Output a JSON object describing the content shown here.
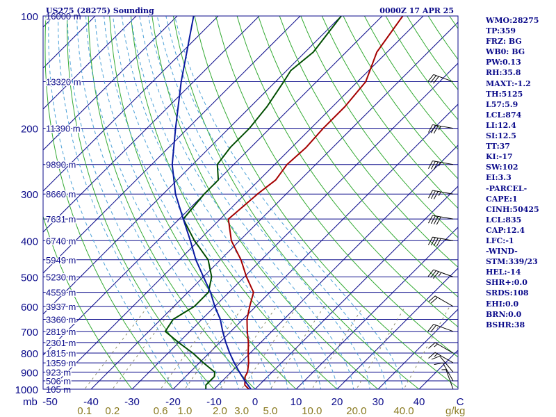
{
  "chart_data": {
    "type": "skew-t",
    "title": "US275 (28275) Sounding",
    "valid_time": "0000Z 17 APR 25",
    "y_unit_label": "mb",
    "pressure_levels": [
      {
        "p": 100,
        "label": "100",
        "height": "16000 m"
      },
      {
        "p": 150,
        "label": "",
        "height": "13320 m"
      },
      {
        "p": 200,
        "label": "200",
        "height": "11390 m"
      },
      {
        "p": 250,
        "label": "",
        "height": "9890 m"
      },
      {
        "p": 300,
        "label": "300",
        "height": "8660 m"
      },
      {
        "p": 350,
        "label": "",
        "height": "7631 m"
      },
      {
        "p": 400,
        "label": "400",
        "height": "6740 m"
      },
      {
        "p": 450,
        "label": "",
        "height": "5949 m"
      },
      {
        "p": 500,
        "label": "500",
        "height": "5230 m"
      },
      {
        "p": 550,
        "label": "",
        "height": "4559 m"
      },
      {
        "p": 600,
        "label": "600",
        "height": "3937 m"
      },
      {
        "p": 650,
        "label": "",
        "height": "3360 m"
      },
      {
        "p": 700,
        "label": "700",
        "height": "2819 m"
      },
      {
        "p": 750,
        "label": "",
        "height": "2301 m"
      },
      {
        "p": 800,
        "label": "800",
        "height": "1815 m"
      },
      {
        "p": 850,
        "label": "",
        "height": "1359 m"
      },
      {
        "p": 900,
        "label": "900",
        "height": "923 m"
      },
      {
        "p": 950,
        "label": "",
        "height": "506 m"
      },
      {
        "p": 1000,
        "label": "1000",
        "height": "105 m"
      }
    ],
    "x_ticks": [
      {
        "t": -50,
        "label": "-50"
      },
      {
        "t": -40,
        "label": "-40"
      },
      {
        "t": -30,
        "label": "-30"
      },
      {
        "t": -20,
        "label": "-20"
      },
      {
        "t": -10,
        "label": "-10"
      },
      {
        "t": 0,
        "label": "0"
      },
      {
        "t": 10,
        "label": "10"
      },
      {
        "t": 20,
        "label": "20"
      },
      {
        "t": 30,
        "label": "30"
      },
      {
        "t": 40,
        "label": "40"
      },
      {
        "t": 50,
        "label": "C"
      }
    ],
    "mixing_ratio": {
      "unit": "g/kg",
      "values": [
        0.1,
        0.2,
        0.6,
        1.0,
        2.0,
        3.0,
        5.0,
        10.0,
        20.0,
        40.0
      ],
      "labels": [
        "0.1",
        "0.2",
        "0.6",
        "1.0",
        "2.0",
        "3.0",
        "5.0",
        "10.0",
        "20.0",
        "40.0"
      ]
    },
    "series": [
      {
        "role": "temperature",
        "color": "#a50000",
        "points": [
          [
            1000,
            -1.5
          ],
          [
            975,
            -3.5
          ],
          [
            950,
            -4.5
          ],
          [
            925,
            -5.5
          ],
          [
            900,
            -6
          ],
          [
            850,
            -8
          ],
          [
            800,
            -10.5
          ],
          [
            750,
            -13
          ],
          [
            700,
            -16
          ],
          [
            650,
            -19
          ],
          [
            600,
            -21.5
          ],
          [
            550,
            -24
          ],
          [
            500,
            -29.5
          ],
          [
            450,
            -35
          ],
          [
            400,
            -42
          ],
          [
            350,
            -48
          ],
          [
            300,
            -47
          ],
          [
            275,
            -46
          ],
          [
            250,
            -47
          ],
          [
            225,
            -46.5
          ],
          [
            200,
            -47
          ],
          [
            175,
            -47
          ],
          [
            150,
            -48
          ],
          [
            125,
            -52.5
          ],
          [
            100,
            -55
          ]
        ]
      },
      {
        "role": "dewpoint",
        "color": "#004d00",
        "points": [
          [
            1000,
            -12
          ],
          [
            975,
            -13
          ],
          [
            950,
            -13
          ],
          [
            925,
            -13
          ],
          [
            900,
            -14
          ],
          [
            850,
            -19
          ],
          [
            800,
            -24
          ],
          [
            750,
            -30
          ],
          [
            700,
            -36
          ],
          [
            650,
            -37
          ],
          [
            600,
            -35
          ],
          [
            550,
            -35
          ],
          [
            500,
            -38
          ],
          [
            450,
            -43
          ],
          [
            400,
            -51
          ],
          [
            350,
            -59
          ],
          [
            300,
            -60
          ],
          [
            275,
            -60
          ],
          [
            250,
            -64
          ],
          [
            225,
            -65
          ],
          [
            200,
            -65
          ],
          [
            175,
            -66
          ],
          [
            150,
            -68
          ],
          [
            140,
            -69
          ],
          [
            125,
            -68
          ],
          [
            100,
            -70
          ]
        ]
      },
      {
        "role": "parcel",
        "color": "#0a1aa0",
        "points": [
          [
            1000,
            -1
          ],
          [
            950,
            -4.5
          ],
          [
            900,
            -8
          ],
          [
            850,
            -11.5
          ],
          [
            800,
            -15
          ],
          [
            750,
            -18.5
          ],
          [
            700,
            -22
          ],
          [
            650,
            -25.5
          ],
          [
            600,
            -30
          ],
          [
            550,
            -34.5
          ],
          [
            500,
            -40
          ],
          [
            450,
            -46
          ],
          [
            400,
            -52
          ],
          [
            350,
            -59
          ],
          [
            300,
            -67
          ],
          [
            250,
            -75
          ],
          [
            200,
            -83
          ],
          [
            150,
            -93
          ],
          [
            100,
            -106
          ]
        ]
      }
    ],
    "wind_barbs": [
      {
        "p": 1000,
        "dir": 340,
        "kt": 5
      },
      {
        "p": 950,
        "dir": 330,
        "kt": 10
      },
      {
        "p": 900,
        "dir": 320,
        "kt": 10
      },
      {
        "p": 850,
        "dir": 300,
        "kt": 15
      },
      {
        "p": 800,
        "dir": 300,
        "kt": 15
      },
      {
        "p": 700,
        "dir": 290,
        "kt": 20
      },
      {
        "p": 600,
        "dir": 300,
        "kt": 20
      },
      {
        "p": 500,
        "dir": 290,
        "kt": 35
      },
      {
        "p": 400,
        "dir": 280,
        "kt": 40
      },
      {
        "p": 350,
        "dir": 280,
        "kt": 40
      },
      {
        "p": 300,
        "dir": 280,
        "kt": 35
      },
      {
        "p": 250,
        "dir": 280,
        "kt": 35
      },
      {
        "p": 200,
        "dir": 280,
        "kt": 35
      },
      {
        "p": 150,
        "dir": 290,
        "kt": 30
      }
    ]
  },
  "indices": [
    "WMO:28275",
    "TP:359",
    "FRZ: BG",
    "WB0: BG",
    "PW:0.13",
    "RH:35.8",
    "MAXT:-1.2",
    "TH:5125",
    "L57:5.9",
    "LCL:874",
    "LI:12.4",
    "SI:12.5",
    "TT:37",
    "KI:-17",
    "SW:102",
    "EI:3.3",
    "-PARCEL-",
    "CAPE:1",
    "CINH:50425",
    "LCL:835",
    "CAP:12.4",
    "LFC:-1",
    "-WIND-",
    "STM:339/23",
    "HEL:-14",
    "SHR+:0.0",
    "SRDS:108",
    "EHI:0.0",
    "BRN:0.0",
    "BSHR:38"
  ],
  "colors": {
    "isobar": "#0a0a8a",
    "isotherm": "#0a0a8a",
    "dry_adiabat": "#33aa33",
    "moist_adiabat": "#4aa0d8",
    "mixing_ratio": "#8a8a6a",
    "temperature": "#a50000",
    "dewpoint": "#004d00",
    "parcel": "#0a1aa0",
    "text": "#0a0a8a",
    "mixing_label": "#8a7a20",
    "wind_barb": "#000000"
  }
}
